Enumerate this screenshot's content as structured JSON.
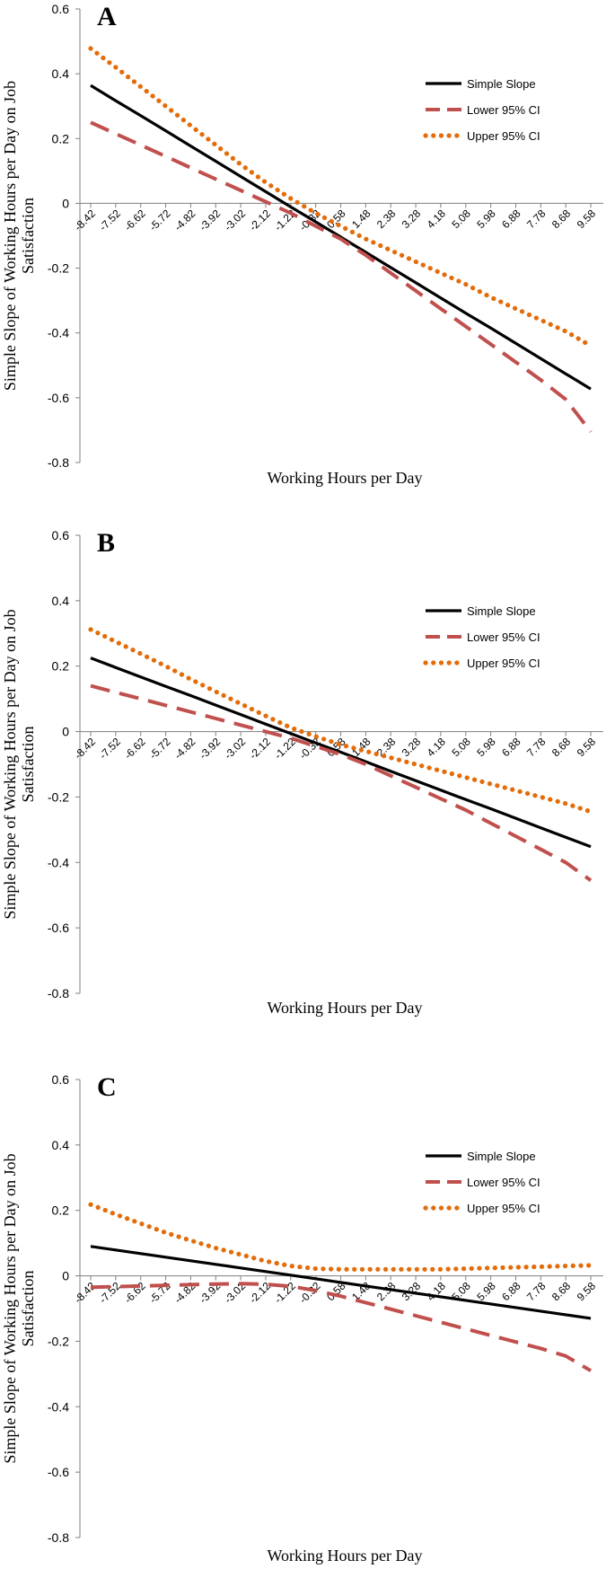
{
  "chart_data": [
    {
      "type": "line",
      "panel_label": "A",
      "title": "",
      "xlabel": "Working Hours per Day",
      "ylabel": "Simple Slope of Working Hours per Day on Job Satisfaction",
      "ylim": [
        -0.8,
        0.6
      ],
      "yticks": [
        "0.6",
        "0.4",
        "0.2",
        "0",
        "-0.2",
        "-0.4",
        "-0.6",
        "-0.8"
      ],
      "x": [
        "-8.42",
        "-7.52",
        "-6.62",
        "-5.72",
        "-4.82",
        "-3.92",
        "-3.02",
        "-2.12",
        "-1.22",
        "-0.32",
        "0.58",
        "1.48",
        "2.38",
        "3.28",
        "4.18",
        "5.08",
        "5.98",
        "6.88",
        "7.78",
        "8.68",
        "9.58"
      ],
      "legend_position": "top-right",
      "series": [
        {
          "name": "Simple Slope",
          "color": "#000000",
          "style": "solid",
          "values": [
            0.364,
            0.317,
            0.271,
            0.224,
            0.177,
            0.13,
            0.083,
            0.036,
            -0.011,
            -0.057,
            -0.104,
            -0.151,
            -0.198,
            -0.245,
            -0.292,
            -0.339,
            -0.385,
            -0.432,
            -0.479,
            -0.526,
            -0.573
          ]
        },
        {
          "name": "Lower 95% CI",
          "color": "#c0504d",
          "style": "dashed",
          "values": [
            0.25,
            0.215,
            0.18,
            0.145,
            0.11,
            0.075,
            0.04,
            0.005,
            -0.03,
            -0.07,
            -0.11,
            -0.16,
            -0.215,
            -0.27,
            -0.325,
            -0.38,
            -0.435,
            -0.49,
            -0.545,
            -0.605,
            -0.705
          ]
        },
        {
          "name": "Upper 95% CI",
          "color": "#e36c09",
          "style": "dotted",
          "values": [
            0.478,
            0.42,
            0.36,
            0.3,
            0.24,
            0.18,
            0.12,
            0.065,
            0.015,
            -0.03,
            -0.07,
            -0.11,
            -0.145,
            -0.18,
            -0.215,
            -0.25,
            -0.29,
            -0.325,
            -0.36,
            -0.395,
            -0.44
          ]
        }
      ]
    },
    {
      "type": "line",
      "panel_label": "B",
      "title": "",
      "xlabel": "Working Hours per Day",
      "ylabel": "Simple Slope of Working Hours per Day on Job Satisfaction",
      "ylim": [
        -0.8,
        0.6
      ],
      "yticks": [
        "0.6",
        "0.4",
        "0.2",
        "0",
        "-0.2",
        "-0.4",
        "-0.6",
        "-0.8"
      ],
      "x": [
        "-8.42",
        "-7.52",
        "-6.62",
        "-5.72",
        "-4.82",
        "-3.92",
        "-3.02",
        "-2.12",
        "-1.22",
        "-0.32",
        "0.58",
        "1.48",
        "2.38",
        "3.28",
        "4.18",
        "5.08",
        "5.98",
        "6.88",
        "7.78",
        "8.68",
        "9.58"
      ],
      "legend_position": "top-right",
      "series": [
        {
          "name": "Simple Slope",
          "color": "#000000",
          "style": "solid",
          "values": [
            0.225,
            0.196,
            0.167,
            0.138,
            0.11,
            0.081,
            0.052,
            0.023,
            -0.006,
            -0.035,
            -0.063,
            -0.092,
            -0.121,
            -0.15,
            -0.179,
            -0.208,
            -0.236,
            -0.265,
            -0.294,
            -0.323,
            -0.352
          ]
        },
        {
          "name": "Lower 95% CI",
          "color": "#c0504d",
          "style": "dashed",
          "values": [
            0.14,
            0.12,
            0.1,
            0.08,
            0.06,
            0.04,
            0.02,
            0.0,
            -0.02,
            -0.045,
            -0.07,
            -0.1,
            -0.135,
            -0.17,
            -0.205,
            -0.24,
            -0.28,
            -0.32,
            -0.36,
            -0.4,
            -0.455
          ]
        },
        {
          "name": "Upper 95% CI",
          "color": "#e36c09",
          "style": "dotted",
          "values": [
            0.312,
            0.275,
            0.238,
            0.2,
            0.16,
            0.122,
            0.085,
            0.048,
            0.012,
            -0.015,
            -0.04,
            -0.06,
            -0.08,
            -0.1,
            -0.12,
            -0.14,
            -0.16,
            -0.18,
            -0.2,
            -0.22,
            -0.245
          ]
        }
      ]
    },
    {
      "type": "line",
      "panel_label": "C",
      "title": "",
      "xlabel": "Working Hours per Day",
      "ylabel": "Simple Slope of Working Hours per Day on Job Satisfaction",
      "ylim": [
        -0.8,
        0.6
      ],
      "yticks": [
        "0.6",
        "0.4",
        "0.2",
        "0",
        "-0.2",
        "-0.4",
        "-0.6",
        "-0.8"
      ],
      "x": [
        "-8.42",
        "-7.52",
        "-6.62",
        "-5.72",
        "-4.82",
        "-3.92",
        "-3.02",
        "-2.12",
        "-1.22",
        "-0.32",
        "0.58",
        "1.48",
        "2.38",
        "3.28",
        "4.18",
        "5.08",
        "5.98",
        "6.88",
        "7.78",
        "8.68",
        "9.58"
      ],
      "legend_position": "top-right",
      "series": [
        {
          "name": "Simple Slope",
          "color": "#000000",
          "style": "solid",
          "values": [
            0.09,
            0.079,
            0.068,
            0.057,
            0.046,
            0.035,
            0.024,
            0.013,
            0.002,
            -0.009,
            -0.02,
            -0.031,
            -0.042,
            -0.053,
            -0.064,
            -0.075,
            -0.086,
            -0.097,
            -0.108,
            -0.119,
            -0.13
          ]
        },
        {
          "name": "Lower 95% CI",
          "color": "#c0504d",
          "style": "dashed",
          "values": [
            -0.035,
            -0.033,
            -0.031,
            -0.029,
            -0.027,
            -0.025,
            -0.024,
            -0.026,
            -0.032,
            -0.045,
            -0.062,
            -0.082,
            -0.102,
            -0.122,
            -0.142,
            -0.162,
            -0.182,
            -0.202,
            -0.222,
            -0.245,
            -0.29
          ]
        },
        {
          "name": "Upper 95% CI",
          "color": "#e36c09",
          "style": "dotted",
          "values": [
            0.218,
            0.188,
            0.16,
            0.132,
            0.108,
            0.085,
            0.065,
            0.045,
            0.03,
            0.022,
            0.02,
            0.02,
            0.02,
            0.02,
            0.02,
            0.022,
            0.024,
            0.026,
            0.028,
            0.03,
            0.032
          ]
        }
      ]
    }
  ]
}
